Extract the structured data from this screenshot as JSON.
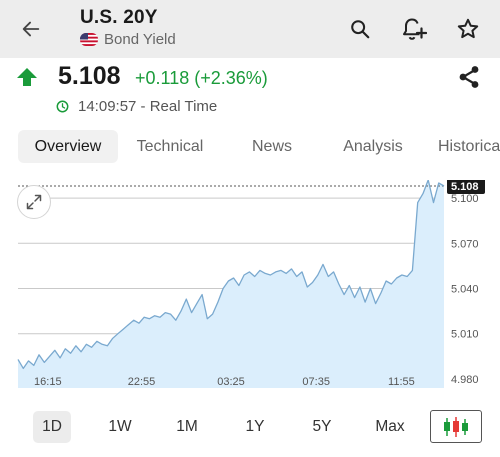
{
  "header": {
    "title": "U.S. 20Y",
    "subtitle": "Bond Yield",
    "icons": {
      "back": "back-arrow-icon",
      "search": "search-icon",
      "alert": "add-alert-bell-icon",
      "watchlist": "star-icon"
    }
  },
  "quote": {
    "direction": "up",
    "price": "5.108",
    "change": "+0.118 (+2.36%)",
    "time": "14:09:57 - Real Time",
    "colors": {
      "up": "#1a9b3a",
      "line": "#7aa9cf",
      "area": "#dbeefc"
    }
  },
  "tabs": [
    {
      "label": "Overview",
      "active": true
    },
    {
      "label": "Technical",
      "active": false
    },
    {
      "label": "News",
      "active": false
    },
    {
      "label": "Analysis",
      "active": false
    },
    {
      "label": "Historical",
      "active": false
    }
  ],
  "chart_data": {
    "type": "area",
    "x_ticks": [
      "16:15",
      "22:55",
      "03:25",
      "07:35",
      "11:55"
    ],
    "y_ticks": [
      "5.100",
      "5.070",
      "5.040",
      "5.010",
      "4.980"
    ],
    "ylim": [
      4.974,
      5.112
    ],
    "last_price": "5.108",
    "values": [
      4.993,
      4.987,
      4.992,
      4.989,
      4.996,
      4.991,
      4.995,
      4.999,
      4.994,
      5.0,
      4.997,
      5.002,
      4.998,
      5.003,
      5.001,
      5.005,
      5.003,
      5.002,
      5.007,
      5.01,
      5.013,
      5.016,
      5.019,
      5.017,
      5.021,
      5.02,
      5.022,
      5.021,
      5.024,
      5.023,
      5.019,
      5.025,
      5.033,
      5.024,
      5.03,
      5.036,
      5.02,
      5.023,
      5.031,
      5.04,
      5.045,
      5.047,
      5.042,
      5.049,
      5.051,
      5.048,
      5.052,
      5.05,
      5.049,
      5.051,
      5.052,
      5.05,
      5.053,
      5.048,
      5.051,
      5.041,
      5.044,
      5.049,
      5.056,
      5.048,
      5.051,
      5.043,
      5.036,
      5.042,
      5.034,
      5.041,
      5.031,
      5.04,
      5.03,
      5.037,
      5.045,
      5.043,
      5.047,
      5.049,
      5.048,
      5.052,
      5.097,
      5.103,
      5.112,
      5.097,
      5.11,
      5.108
    ]
  },
  "periods": [
    {
      "label": "1D",
      "active": true
    },
    {
      "label": "1W",
      "active": false
    },
    {
      "label": "1M",
      "active": false
    },
    {
      "label": "1Y",
      "active": false
    },
    {
      "label": "5Y",
      "active": false
    },
    {
      "label": "Max",
      "active": false
    }
  ],
  "chart_style_button": "candlestick-icon",
  "expand_button": "expand-icon",
  "share_button": "share-icon"
}
